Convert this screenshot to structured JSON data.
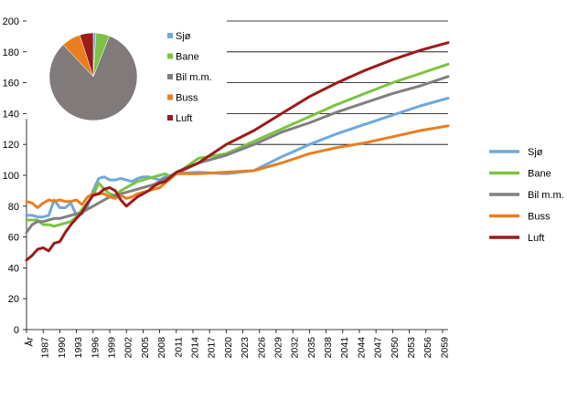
{
  "chart_data": [
    {
      "type": "line",
      "title": "",
      "xlabel": "",
      "ylabel": "",
      "ylim": [
        0,
        200
      ],
      "yticks": [
        0,
        20,
        40,
        60,
        80,
        100,
        120,
        140,
        160,
        180,
        200
      ],
      "grid": "horizontal, from 120 to 200 only",
      "legend_position": "right",
      "x_tick_labels": [
        "År",
        "1987",
        "1990",
        "1993",
        "1996",
        "1999",
        "2002",
        "2005",
        "2008",
        "2011",
        "2014",
        "2017",
        "2020",
        "2023",
        "2026",
        "2029",
        "2032",
        "2035",
        "2038",
        "2041",
        "2044",
        "2047",
        "2050",
        "2053",
        "2056",
        "2059"
      ],
      "x": [
        1984,
        1985,
        1986,
        1987,
        1988,
        1989,
        1990,
        1991,
        1992,
        1993,
        1994,
        1995,
        1996,
        1997,
        1998,
        1999,
        2000,
        2001,
        2002,
        2003,
        2004,
        2005,
        2006,
        2007,
        2008,
        2009,
        2010,
        2011,
        2015,
        2020,
        2025,
        2030,
        2035,
        2040,
        2045,
        2050,
        2055,
        2060
      ],
      "series": [
        {
          "name": "Sjø",
          "color": "#6fa8dc",
          "values": [
            74,
            74,
            73,
            73,
            74,
            84,
            79,
            79,
            82,
            74,
            75,
            80,
            90,
            98,
            99,
            97,
            97,
            98,
            97,
            96,
            98,
            99,
            99,
            98,
            97,
            99,
            100,
            101,
            102,
            101,
            103,
            112,
            120,
            127,
            133,
            139,
            145,
            150
          ]
        },
        {
          "name": "Bane",
          "color": "#7dc242",
          "values": [
            71,
            71,
            71,
            68,
            68,
            67,
            68,
            69,
            70,
            73,
            78,
            82,
            87,
            95,
            91,
            88,
            87,
            90,
            92,
            94,
            96,
            97,
            98,
            99,
            100,
            101,
            99,
            101,
            111,
            114,
            122,
            130,
            138,
            146,
            153,
            160,
            166,
            172
          ]
        },
        {
          "name": "Bil m.m.",
          "color": "#808080",
          "values": [
            63,
            68,
            70,
            70,
            71,
            72,
            72,
            73,
            74,
            75,
            76,
            78,
            80,
            82,
            84,
            86,
            87,
            88,
            89,
            90,
            91,
            92,
            93,
            94,
            96,
            98,
            99,
            101,
            108,
            113,
            120,
            128,
            134,
            141,
            147,
            153,
            158,
            164
          ]
        },
        {
          "name": "Buss",
          "color": "#e87e1f",
          "values": [
            83,
            82,
            79,
            82,
            84,
            83,
            84,
            83,
            83,
            84,
            81,
            86,
            88,
            88,
            88,
            86,
            85,
            87,
            85,
            86,
            88,
            89,
            90,
            91,
            92,
            95,
            98,
            101,
            101,
            102,
            103,
            108,
            114,
            118,
            121,
            125,
            129,
            132
          ]
        },
        {
          "name": "Luft",
          "color": "#9b1b1b",
          "values": [
            45,
            48,
            52,
            53,
            51,
            56,
            57,
            63,
            68,
            72,
            76,
            82,
            87,
            88,
            91,
            92,
            90,
            84,
            80,
            83,
            86,
            88,
            90,
            93,
            95,
            96,
            99,
            102,
            108,
            120,
            129,
            140,
            151,
            160,
            168,
            175,
            181,
            186
          ]
        }
      ]
    },
    {
      "type": "pie",
      "slices": [
        {
          "name": "Sjø",
          "value": 1,
          "color": "#6fa8dc"
        },
        {
          "name": "Bane",
          "value": 5,
          "color": "#7dc242"
        },
        {
          "name": "Bil m.m.",
          "value": 82,
          "color": "#807a7a"
        },
        {
          "name": "Buss",
          "value": 7,
          "color": "#e87e1f"
        },
        {
          "name": "Luft",
          "value": 5,
          "color": "#9b1b1b"
        }
      ],
      "legend": [
        "Sjø",
        "Bane",
        "Bil m.m.",
        "Buss",
        "Luft"
      ]
    }
  ]
}
